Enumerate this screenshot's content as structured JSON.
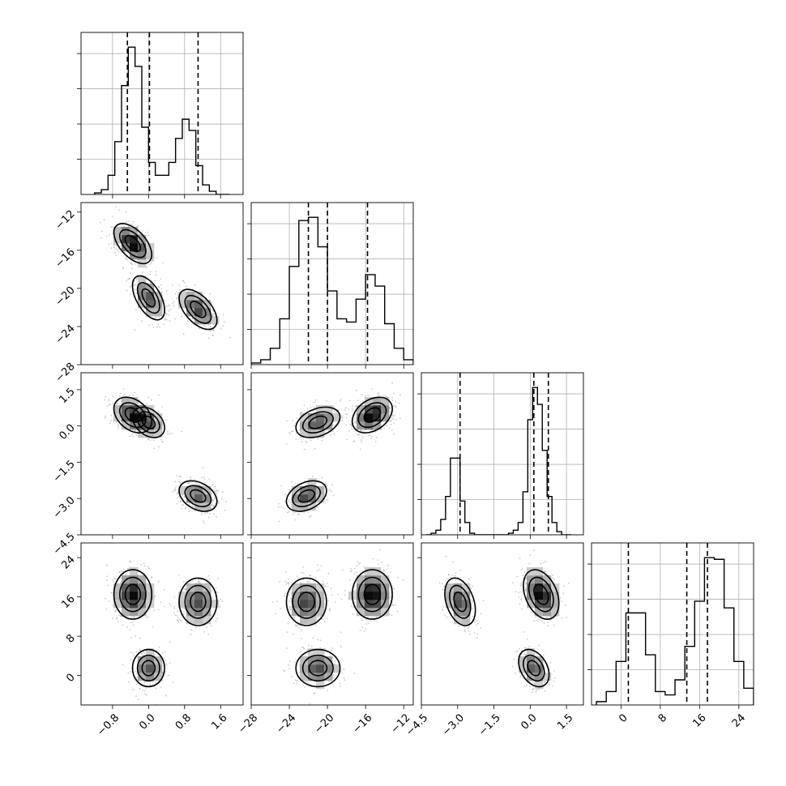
{
  "chart_data": {
    "type": "corner",
    "variables": [
      {
        "range": [
          -1.5,
          2.1
        ],
        "ticks": [
          -0.8,
          0.0,
          0.8,
          1.6
        ],
        "tick_labels": [
          "−0.8",
          "0.0",
          "0.8",
          "1.6"
        ]
      },
      {
        "range": [
          -28,
          -11
        ],
        "ticks": [
          -28,
          -24,
          -20,
          -16,
          -12
        ],
        "tick_labels": [
          "−28",
          "−24",
          "−20",
          "−16",
          "−12"
        ]
      },
      {
        "range": [
          -4.5,
          2.2
        ],
        "ticks": [
          -4.5,
          -3.0,
          -1.5,
          0.0,
          1.5
        ],
        "tick_labels": [
          "−4.5",
          "−3.0",
          "−1.5",
          "0.0",
          "1.5"
        ]
      },
      {
        "range": [
          -6,
          27
        ],
        "ticks": [
          0,
          8,
          16,
          24
        ],
        "tick_labels": [
          "0",
          "8",
          "16",
          "24"
        ]
      }
    ],
    "modes": [
      {
        "weight": 0.42,
        "mean": [
          -0.35,
          -15.3,
          0.45,
          16.5
        ],
        "sd": [
          0.2,
          1.0,
          0.35,
          2.4
        ]
      },
      {
        "weight": 0.28,
        "mean": [
          0.0,
          -21.0,
          0.15,
          1.5
        ],
        "sd": [
          0.17,
          1.1,
          0.3,
          1.8
        ]
      },
      {
        "weight": 0.3,
        "mean": [
          1.1,
          -22.2,
          -2.9,
          15.0
        ],
        "sd": [
          0.2,
          1.0,
          0.3,
          2.3
        ]
      }
    ],
    "histograms": [
      {
        "bin_edges": [
          -1.2,
          -1.05,
          -0.9,
          -0.75,
          -0.6,
          -0.45,
          -0.3,
          -0.15,
          0.0,
          0.15,
          0.3,
          0.45,
          0.6,
          0.75,
          0.9,
          1.05,
          1.2,
          1.35,
          1.5,
          1.65,
          1.8
        ],
        "counts": [
          1,
          3,
          12,
          33,
          68,
          92,
          80,
          42,
          20,
          12,
          12,
          20,
          35,
          47,
          40,
          18,
          6,
          2,
          0,
          0
        ]
      },
      {
        "bin_edges": [
          -28,
          -27,
          -26,
          -25,
          -24,
          -23,
          -22,
          -21,
          -20,
          -19,
          -18,
          -17,
          -16,
          -15,
          -14,
          -13,
          -12,
          -11
        ],
        "counts": [
          1,
          3,
          10,
          28,
          60,
          88,
          90,
          72,
          45,
          28,
          26,
          40,
          55,
          48,
          25,
          10,
          3
        ]
      },
      {
        "bin_edges": [
          -4.3,
          -4.1,
          -3.9,
          -3.7,
          -3.5,
          -3.3,
          -3.1,
          -2.9,
          -2.7,
          -2.5,
          -2.3,
          -2.1,
          -1.9,
          -1.7,
          -1.5,
          -1.3,
          -1.1,
          -0.9,
          -0.7,
          -0.5,
          -0.3,
          -0.1,
          0.1,
          0.3,
          0.5,
          0.7,
          0.9,
          1.1,
          1.3,
          1.5,
          1.7
        ],
        "counts": [
          0,
          1,
          3,
          10,
          25,
          50,
          50,
          22,
          8,
          1,
          0,
          0,
          0,
          0,
          0,
          0,
          0,
          1,
          3,
          8,
          28,
          75,
          96,
          85,
          55,
          25,
          8,
          2,
          0,
          0
        ]
      },
      {
        "bin_edges": [
          -5,
          -3,
          -1,
          1,
          3,
          5,
          7,
          9,
          11,
          13,
          15,
          17,
          19,
          21,
          23,
          25,
          27
        ],
        "counts": [
          2,
          8,
          26,
          55,
          55,
          30,
          8,
          6,
          15,
          35,
          62,
          88,
          87,
          58,
          26,
          10
        ]
      }
    ],
    "quantiles": [
      [
        -0.47,
        0.02,
        1.1
      ],
      [
        -22.0,
        -20.0,
        -15.8
      ],
      [
        -2.9,
        0.15,
        0.75
      ],
      [
        1.5,
        13.4,
        17.6
      ]
    ],
    "contours_per_panel": 3,
    "grid": true
  }
}
